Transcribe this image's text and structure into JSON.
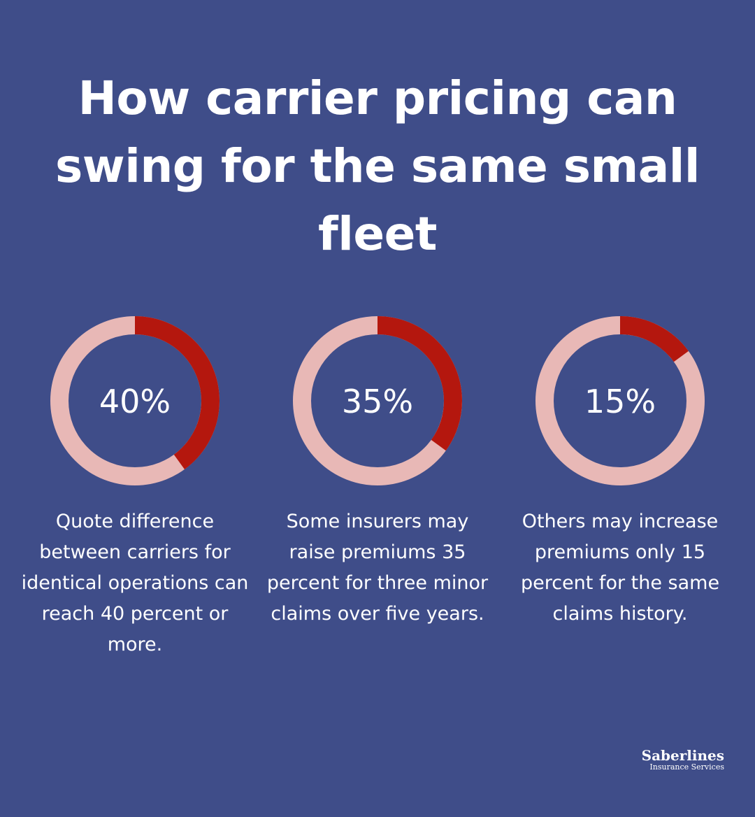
{
  "title": "How carrier pricing can swing for the same small fleet",
  "colors": {
    "background": "#3f4d89",
    "ring_track": "#e8b8b6",
    "ring_fill": "#b4170e",
    "text": "#ffffff"
  },
  "chart_data": [
    {
      "type": "pie",
      "value_percent": 40,
      "label": "40%",
      "caption": "Quote difference between carriers for identical operations can reach 40 percent or more."
    },
    {
      "type": "pie",
      "value_percent": 35,
      "label": "35%",
      "caption": "Some insurers may raise premiums 35 percent for three minor claims over five years."
    },
    {
      "type": "pie",
      "value_percent": 15,
      "label": "15%",
      "caption": "Others may increase premiums only 15 percent for the same claims history."
    }
  ],
  "logo": {
    "name": "Saberlines",
    "subtitle": "Insurance Services"
  }
}
